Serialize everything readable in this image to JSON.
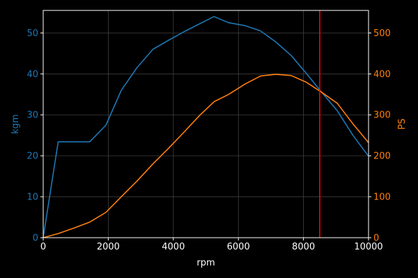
{
  "chart_data": {
    "type": "line",
    "xlabel": "rpm",
    "ylabel_left": "kgm",
    "ylabel_right": "PS",
    "xlim": [
      0,
      10000
    ],
    "ylim_left": [
      0,
      55.5
    ],
    "ylim_right": [
      0,
      555
    ],
    "xticks": [
      0,
      2000,
      4000,
      6000,
      8000,
      10000
    ],
    "yticks_left": [
      0,
      10,
      20,
      30,
      40,
      50
    ],
    "yticks_right": [
      0,
      100,
      200,
      300,
      400,
      500
    ],
    "grid": true,
    "background": "#000000",
    "axis_color": "#ffffff",
    "grid_color": "#404040",
    "series": [
      {
        "axis": "left",
        "color": "#1f77b4",
        "x": [
          0,
          460,
          1430,
          1930,
          2400,
          2880,
          3370,
          3850,
          4330,
          4800,
          5250,
          5700,
          6200,
          6680,
          7150,
          7620,
          8080,
          8560,
          9040,
          9520,
          10000
        ],
        "y": [
          0,
          23.4,
          23.4,
          27.5,
          36,
          41.5,
          46,
          48.2,
          50.3,
          52.2,
          54.0,
          52.5,
          51.8,
          50.5,
          47.8,
          44.5,
          40.2,
          35.5,
          31.0,
          25.0,
          19.9
        ]
      },
      {
        "axis": "right",
        "color": "#ff7f0e",
        "x": [
          0,
          460,
          960,
          1430,
          1930,
          2400,
          2880,
          3370,
          3850,
          4330,
          4800,
          5250,
          5700,
          6200,
          6680,
          7150,
          7620,
          8080,
          8560,
          9040,
          9520,
          10000
        ],
        "y": [
          0,
          10,
          24,
          38,
          62,
          100,
          138,
          180,
          218,
          258,
          298,
          332,
          350,
          375,
          395,
          399,
          396,
          380,
          355,
          328,
          278,
          232
        ]
      }
    ],
    "vlines": [
      {
        "x": 8500,
        "color": "#ff0000"
      }
    ]
  }
}
